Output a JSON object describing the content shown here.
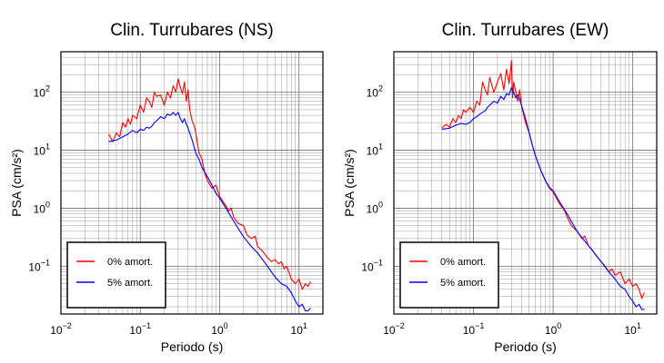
{
  "chart_data": [
    {
      "type": "line",
      "title": "Clin. Turrubares (NS)",
      "xlabel": "Periodo (s)",
      "ylabel": "PSA (cm/s²)",
      "xscale": "log",
      "yscale": "log",
      "xlim": [
        0.01,
        20
      ],
      "ylim": [
        0.015,
        500
      ],
      "grid": true,
      "legend_position": "bottom-left",
      "x_ticks": [
        {
          "base": "10",
          "exp": "−2"
        },
        {
          "base": "10",
          "exp": "−1"
        },
        {
          "base": "10",
          "exp": "0"
        },
        {
          "base": "10",
          "exp": "1"
        }
      ],
      "y_ticks": [
        {
          "base": "10",
          "exp": "−1"
        },
        {
          "base": "10",
          "exp": "0"
        },
        {
          "base": "10",
          "exp": "1"
        },
        {
          "base": "10",
          "exp": "2"
        }
      ],
      "series": [
        {
          "name": "0% amort.",
          "color": "#ff0000",
          "x": [
            0.04,
            0.045,
            0.05,
            0.055,
            0.06,
            0.065,
            0.07,
            0.075,
            0.08,
            0.09,
            0.1,
            0.11,
            0.12,
            0.13,
            0.14,
            0.15,
            0.16,
            0.18,
            0.2,
            0.22,
            0.24,
            0.26,
            0.28,
            0.3,
            0.32,
            0.34,
            0.36,
            0.38,
            0.4,
            0.42,
            0.45,
            0.48,
            0.5,
            0.55,
            0.6,
            0.65,
            0.7,
            0.8,
            0.9,
            1.0,
            1.1,
            1.2,
            1.3,
            1.4,
            1.5,
            1.7,
            2.0,
            2.2,
            2.5,
            2.8,
            3.0,
            3.5,
            4.0,
            4.5,
            5.0,
            5.5,
            6.0,
            6.5,
            7.0,
            8.0,
            9.0,
            10.0,
            11.0,
            12.0,
            13.0,
            14.0
          ],
          "y": [
            19,
            14,
            20,
            17,
            30,
            25,
            35,
            28,
            40,
            35,
            60,
            45,
            80,
            70,
            55,
            100,
            85,
            90,
            60,
            100,
            80,
            130,
            100,
            170,
            120,
            95,
            150,
            70,
            110,
            50,
            32,
            26,
            20,
            9,
            7,
            4,
            3,
            2.2,
            2.5,
            1.6,
            1.3,
            1.1,
            0.9,
            1.0,
            0.7,
            0.55,
            0.5,
            0.35,
            0.3,
            0.33,
            0.22,
            0.18,
            0.14,
            0.12,
            0.13,
            0.11,
            0.12,
            0.09,
            0.1,
            0.06,
            0.05,
            0.06,
            0.04,
            0.05,
            0.045,
            0.055
          ]
        },
        {
          "name": "5% amort.",
          "color": "#0000ff",
          "x": [
            0.04,
            0.05,
            0.06,
            0.07,
            0.08,
            0.09,
            0.1,
            0.11,
            0.12,
            0.13,
            0.14,
            0.15,
            0.16,
            0.18,
            0.2,
            0.22,
            0.24,
            0.26,
            0.28,
            0.3,
            0.32,
            0.34,
            0.36,
            0.38,
            0.4,
            0.45,
            0.5,
            0.55,
            0.6,
            0.7,
            0.8,
            0.9,
            1.0,
            1.2,
            1.5,
            2.0,
            2.5,
            3.0,
            4.0,
            5.0,
            6.0,
            7.0,
            8.0,
            9.0,
            10.0,
            11.0,
            12.0,
            13.0,
            14.0
          ],
          "y": [
            14,
            15,
            17,
            19,
            22,
            20,
            23,
            22,
            25,
            24,
            26,
            30,
            32,
            38,
            35,
            42,
            40,
            45,
            40,
            45,
            35,
            30,
            35,
            28,
            24,
            15,
            9,
            7,
            5,
            3.5,
            2.5,
            1.8,
            1.5,
            1.0,
            0.6,
            0.32,
            0.22,
            0.17,
            0.1,
            0.065,
            0.05,
            0.045,
            0.035,
            0.025,
            0.02,
            0.022,
            0.017,
            0.017,
            0.019
          ]
        }
      ]
    },
    {
      "type": "line",
      "title": "Clin. Turrubares (EW)",
      "xlabel": "Periodo (s)",
      "ylabel": "PSA (cm/s²)",
      "xscale": "log",
      "yscale": "log",
      "xlim": [
        0.01,
        20
      ],
      "ylim": [
        0.015,
        500
      ],
      "grid": true,
      "legend_position": "bottom-left",
      "x_ticks": [
        {
          "base": "10",
          "exp": "−2"
        },
        {
          "base": "10",
          "exp": "−1"
        },
        {
          "base": "10",
          "exp": "0"
        },
        {
          "base": "10",
          "exp": "1"
        }
      ],
      "y_ticks": [
        {
          "base": "10",
          "exp": "−1"
        },
        {
          "base": "10",
          "exp": "0"
        },
        {
          "base": "10",
          "exp": "1"
        },
        {
          "base": "10",
          "exp": "2"
        }
      ],
      "series": [
        {
          "name": "0% amort.",
          "color": "#ff0000",
          "x": [
            0.04,
            0.045,
            0.05,
            0.055,
            0.06,
            0.065,
            0.07,
            0.075,
            0.08,
            0.09,
            0.1,
            0.11,
            0.12,
            0.13,
            0.14,
            0.15,
            0.16,
            0.18,
            0.2,
            0.22,
            0.24,
            0.26,
            0.28,
            0.3,
            0.31,
            0.32,
            0.34,
            0.36,
            0.38,
            0.4,
            0.45,
            0.5,
            0.55,
            0.6,
            0.7,
            0.8,
            0.9,
            1.0,
            1.1,
            1.2,
            1.4,
            1.5,
            1.7,
            2.0,
            2.3,
            2.5,
            2.8,
            3.0,
            3.5,
            4.0,
            4.5,
            5.0,
            5.5,
            6.0,
            7.0,
            8.0,
            9.0,
            10.0,
            11.0,
            12.0,
            13.0,
            14.0
          ],
          "y": [
            24,
            28,
            25,
            35,
            30,
            40,
            35,
            50,
            45,
            55,
            45,
            70,
            60,
            150,
            110,
            90,
            180,
            100,
            150,
            210,
            110,
            250,
            140,
            350,
            80,
            150,
            100,
            70,
            110,
            60,
            30,
            20,
            12,
            8,
            4.5,
            3,
            2.2,
            1.9,
            1.5,
            1.2,
            0.9,
            0.7,
            0.5,
            0.4,
            0.3,
            0.33,
            0.22,
            0.2,
            0.15,
            0.12,
            0.1,
            0.08,
            0.09,
            0.07,
            0.08,
            0.05,
            0.06,
            0.045,
            0.05,
            0.04,
            0.028,
            0.035
          ]
        },
        {
          "name": "5% amort.",
          "color": "#0000ff",
          "x": [
            0.04,
            0.05,
            0.06,
            0.07,
            0.08,
            0.09,
            0.1,
            0.11,
            0.12,
            0.13,
            0.14,
            0.15,
            0.16,
            0.18,
            0.2,
            0.22,
            0.24,
            0.26,
            0.28,
            0.3,
            0.32,
            0.34,
            0.36,
            0.38,
            0.4,
            0.45,
            0.5,
            0.55,
            0.6,
            0.7,
            0.8,
            0.9,
            1.0,
            1.2,
            1.5,
            2.0,
            2.5,
            3.0,
            4.0,
            5.0,
            6.0,
            7.0,
            8.0,
            9.0,
            10.0,
            11.0,
            12.0,
            13.0,
            14.0
          ],
          "y": [
            23,
            24,
            27,
            29,
            28,
            30,
            35,
            38,
            42,
            45,
            48,
            55,
            60,
            70,
            65,
            85,
            75,
            95,
            90,
            120,
            100,
            80,
            90,
            75,
            60,
            35,
            20,
            12,
            8,
            4.5,
            3,
            2.3,
            2,
            1.3,
            0.8,
            0.4,
            0.27,
            0.2,
            0.12,
            0.08,
            0.06,
            0.045,
            0.04,
            0.03,
            0.025,
            0.02,
            0.022,
            0.018,
            0.018
          ]
        }
      ]
    }
  ]
}
